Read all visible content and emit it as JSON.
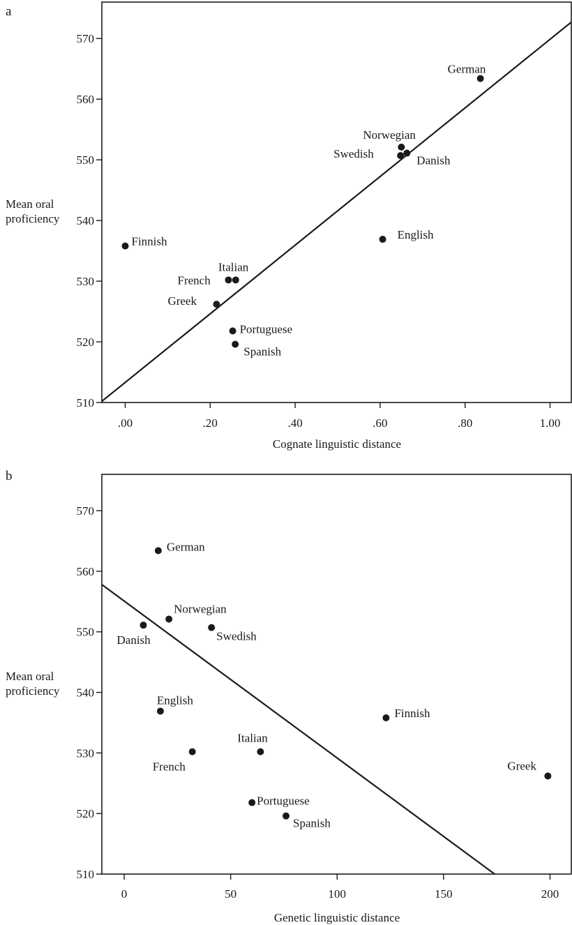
{
  "chart_data": [
    {
      "panel": "a",
      "type": "scatter",
      "xlabel": "Cognate linguistic distance",
      "ylabel": [
        "Mean oral",
        "proficiency"
      ],
      "xlim": [
        -0.055,
        1.05
      ],
      "ylim": [
        510,
        576
      ],
      "xticks": [
        0,
        0.2,
        0.4,
        0.6,
        0.8,
        1.0
      ],
      "xtick_labels": [
        ".00",
        ".20",
        ".40",
        ".60",
        ".80",
        "1.00"
      ],
      "yticks": [
        510,
        520,
        530,
        540,
        550,
        560,
        570
      ],
      "ytick_labels": [
        "510",
        "520",
        "530",
        "540",
        "550",
        "560",
        "570"
      ],
      "points": [
        {
          "label": "German",
          "x": 0.836,
          "y": 563.4
        },
        {
          "label": "Norwegian",
          "x": 0.65,
          "y": 552.1
        },
        {
          "label": "Swedish",
          "x": 0.648,
          "y": 550.7
        },
        {
          "label": "Danish",
          "x": 0.663,
          "y": 551.1
        },
        {
          "label": "English",
          "x": 0.606,
          "y": 536.9
        },
        {
          "label": "Finnish",
          "x": 0.0,
          "y": 535.8
        },
        {
          "label": "Italian",
          "x": 0.26,
          "y": 530.2
        },
        {
          "label": "French",
          "x": 0.243,
          "y": 530.2
        },
        {
          "label": "Greek",
          "x": 0.215,
          "y": 526.2
        },
        {
          "label": "Portuguese",
          "x": 0.253,
          "y": 521.8
        },
        {
          "label": "Spanish",
          "x": 0.259,
          "y": 519.6
        }
      ],
      "fit_line": {
        "x": [
          -0.055,
          1.05
        ],
        "y": [
          510.2,
          572.7
        ]
      }
    },
    {
      "panel": "b",
      "type": "scatter",
      "xlabel": "Genetic linguistic distance",
      "ylabel": [
        "Mean oral",
        "proficiency"
      ],
      "xlim": [
        -10.5,
        210
      ],
      "ylim": [
        510,
        576
      ],
      "xticks": [
        0,
        50,
        100,
        150,
        200
      ],
      "xtick_labels": [
        "0",
        "50",
        "100",
        "150",
        "200"
      ],
      "yticks": [
        510,
        520,
        530,
        540,
        550,
        560,
        570
      ],
      "ytick_labels": [
        "510",
        "520",
        "530",
        "540",
        "550",
        "560",
        "570"
      ],
      "points": [
        {
          "label": "German",
          "x": 16,
          "y": 563.4
        },
        {
          "label": "Norwegian",
          "x": 21,
          "y": 552.1
        },
        {
          "label": "Swedish",
          "x": 41,
          "y": 550.7
        },
        {
          "label": "Danish",
          "x": 9,
          "y": 551.1
        },
        {
          "label": "English",
          "x": 17,
          "y": 536.9
        },
        {
          "label": "Finnish",
          "x": 123,
          "y": 535.8
        },
        {
          "label": "Italian",
          "x": 64,
          "y": 530.2
        },
        {
          "label": "French",
          "x": 32,
          "y": 530.2
        },
        {
          "label": "Greek",
          "x": 199,
          "y": 526.2
        },
        {
          "label": "Portuguese",
          "x": 60,
          "y": 521.8
        },
        {
          "label": "Spanish",
          "x": 76,
          "y": 519.6
        }
      ],
      "fit_line": {
        "x": [
          -10.5,
          174
        ],
        "y": [
          557.8,
          510
        ]
      }
    }
  ]
}
